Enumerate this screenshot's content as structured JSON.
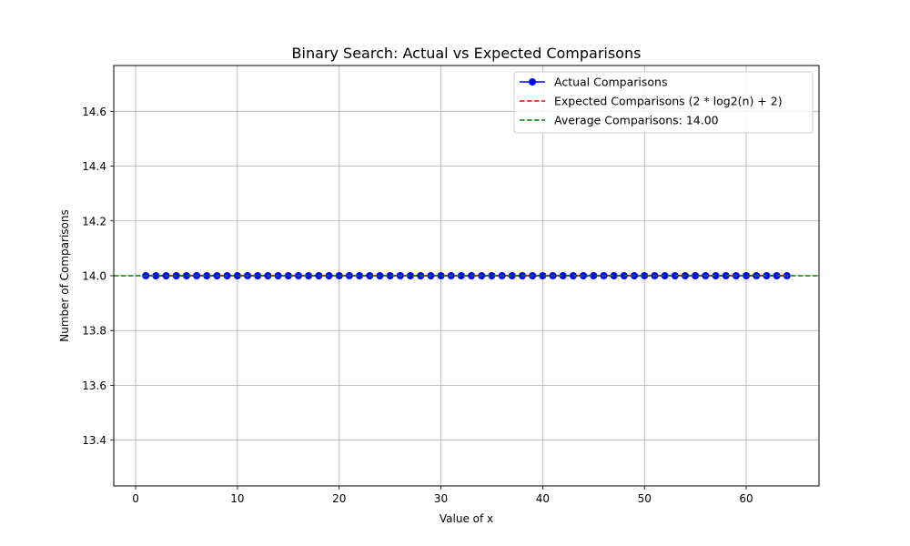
{
  "chart_data": {
    "type": "line",
    "title": "Binary Search: Actual vs Expected Comparisons",
    "xlabel": "Value of x",
    "ylabel": "Number of Comparisons",
    "xlim": [
      -2.15,
      67.15
    ],
    "ylim": [
      13.233,
      14.767
    ],
    "x_ticks": [
      0,
      10,
      20,
      30,
      40,
      50,
      60
    ],
    "x_tick_labels": [
      "0",
      "10",
      "20",
      "30",
      "40",
      "50",
      "60"
    ],
    "y_ticks": [
      13.4,
      13.6,
      13.8,
      14.0,
      14.2,
      14.4,
      14.6
    ],
    "y_tick_labels": [
      "13.4",
      "13.6",
      "13.8",
      "14.0",
      "14.2",
      "14.4",
      "14.6"
    ],
    "grid": true,
    "legend_position": "top-right",
    "series": [
      {
        "name": "Actual Comparisons",
        "style": "line-marker",
        "color": "#0000ff",
        "x": [
          1,
          2,
          3,
          4,
          5,
          6,
          7,
          8,
          9,
          10,
          11,
          12,
          13,
          14,
          15,
          16,
          17,
          18,
          19,
          20,
          21,
          22,
          23,
          24,
          25,
          26,
          27,
          28,
          29,
          30,
          31,
          32,
          33,
          34,
          35,
          36,
          37,
          38,
          39,
          40,
          41,
          42,
          43,
          44,
          45,
          46,
          47,
          48,
          49,
          50,
          51,
          52,
          53,
          54,
          55,
          56,
          57,
          58,
          59,
          60,
          61,
          62,
          63,
          64
        ],
        "y": [
          14,
          14,
          14,
          14,
          14,
          14,
          14,
          14,
          14,
          14,
          14,
          14,
          14,
          14,
          14,
          14,
          14,
          14,
          14,
          14,
          14,
          14,
          14,
          14,
          14,
          14,
          14,
          14,
          14,
          14,
          14,
          14,
          14,
          14,
          14,
          14,
          14,
          14,
          14,
          14,
          14,
          14,
          14,
          14,
          14,
          14,
          14,
          14,
          14,
          14,
          14,
          14,
          14,
          14,
          14,
          14,
          14,
          14,
          14,
          14,
          14,
          14,
          14,
          14
        ]
      },
      {
        "name": "Expected Comparisons (2 * log2(n) + 2)",
        "style": "dashed",
        "color": "#ff0000",
        "x": [
          1,
          64
        ],
        "y": [
          14,
          14
        ]
      },
      {
        "name": "Average Comparisons: 14.00",
        "style": "dashed-hline",
        "color": "#008000",
        "y": 14.0
      }
    ]
  }
}
